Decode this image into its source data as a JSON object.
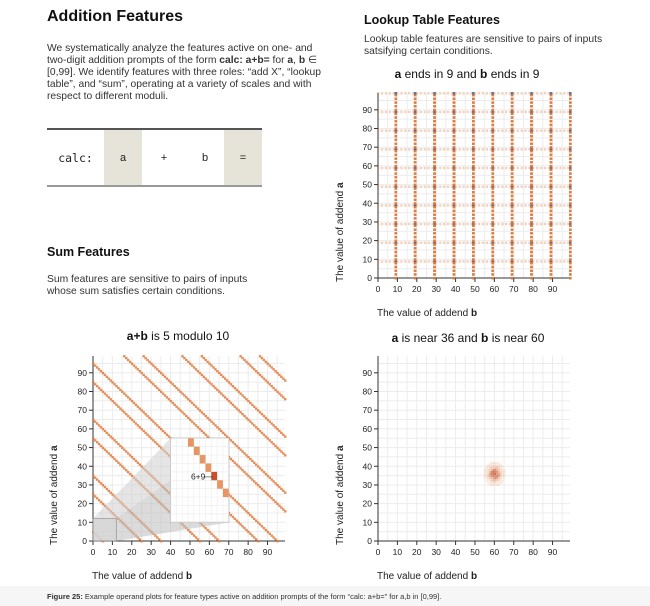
{
  "addition": {
    "title": "Addition Features",
    "para_1": "We systematically analyze the features active on one- and",
    "para_2_pre": "two-digit addition prompts of the form ",
    "para_2_bold": "calc: a+b=",
    "para_2_mid": " for ",
    "para_2_a": "a",
    "para_2_comma": ", ",
    "para_2_b": "b",
    "para_2_in": " ∈",
    "para_3": "[0,99]. We identify features with three roles: “add X”, “lookup",
    "para_4": "table”, and “sum”, operating at a variety of scales and with",
    "para_5": "respect to different moduli."
  },
  "calc_box": {
    "prefix": "calc:",
    "a": "a",
    "plus": "+",
    "b": "b",
    "eq": "="
  },
  "sum": {
    "title": "Sum Features",
    "para_1": "Sum features are sensitive to pairs of inputs",
    "para_2": "whose sum satisfies certain conditions."
  },
  "lookup": {
    "title": "Lookup Table Features",
    "para_1": "Lookup table features are sensitive to pairs of inputs",
    "para_2": "satsifying certain conditions."
  },
  "plots": {
    "lookup_plot": {
      "title_a": "a",
      "title_mid": " ends in 9 and ",
      "title_b": "b",
      "title_end": " ends in 9",
      "xlabel_pre": "The value of addend ",
      "xlabel_var": "b",
      "ylabel_pre": "The value of addend ",
      "ylabel_var": "a"
    },
    "sum_plot": {
      "title_a": "a+b",
      "title_end": " is 5 modulo 10",
      "inset_label": "6+9",
      "xlabel_pre": "The value of addend ",
      "xlabel_var": "b",
      "ylabel_pre": "The value of addend ",
      "ylabel_var": "a"
    },
    "near_plot": {
      "title_a": "a",
      "title_mid": " is near 36 and ",
      "title_b": "b",
      "title_end": " is near 60",
      "xlabel_pre": "The value of addend ",
      "xlabel_var": "b",
      "ylabel_pre": "The value of addend ",
      "ylabel_var": "a"
    }
  },
  "chart_data": [
    {
      "type": "heatmap",
      "title": "a ends in 9 and b ends in 9",
      "xlabel": "The value of addend b",
      "ylabel": "The value of addend a",
      "xlim": [
        0,
        99
      ],
      "ylim": [
        0,
        99
      ],
      "ticks": [
        0,
        10,
        20,
        30,
        40,
        50,
        60,
        70,
        80,
        90
      ],
      "rule": "a mod 10 == 9 and b mod 10 == 9",
      "colors": [
        "#e07a3c",
        "#4c6fa8"
      ]
    },
    {
      "type": "heatmap",
      "title": "a+b is 5 modulo 10",
      "xlabel": "The value of addend b",
      "ylabel": "The value of addend a",
      "xlim": [
        0,
        99
      ],
      "ylim": [
        0,
        99
      ],
      "ticks": [
        0,
        10,
        20,
        30,
        40,
        50,
        60,
        70,
        80,
        90
      ],
      "rule": "(a + b) mod 10 == 5",
      "inset_example": "6+9",
      "colors": [
        "#e07a3c",
        "#c8502a"
      ]
    },
    {
      "type": "heatmap",
      "title": "a is near 36 and b is near 60",
      "xlabel": "The value of addend b",
      "ylabel": "The value of addend a",
      "xlim": [
        0,
        99
      ],
      "ylim": [
        0,
        99
      ],
      "ticks": [
        0,
        10,
        20,
        30,
        40,
        50,
        60,
        70,
        80,
        90
      ],
      "center": {
        "a": 36,
        "b": 60
      },
      "colors": [
        "#e07a3c",
        "#c8502a"
      ]
    }
  ],
  "caption": {
    "label": "Figure 25:",
    "text": " Example operand plots for feature types active on addition prompts of the form “calc: a+b=” for a,b in [0,99]."
  },
  "colors": {
    "orange": "#e07a3c",
    "dark_orange": "#c8502a",
    "blue": "#4c6fa8",
    "calc_highlight": "#e6e4d8"
  }
}
